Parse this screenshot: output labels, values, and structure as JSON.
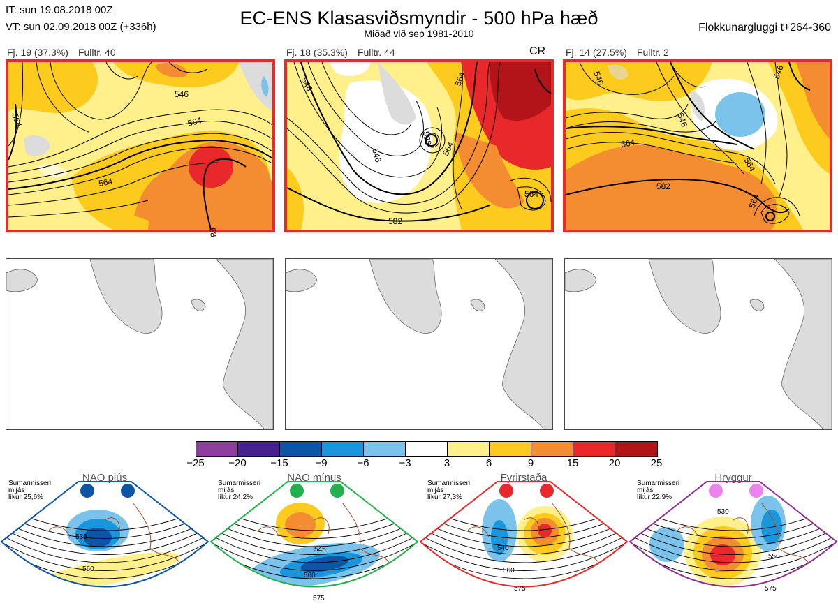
{
  "header": {
    "it": "IT: sun 19.08.2018 00Z",
    "vt": "VT: sun 02.09.2018 00Z  (+336h)",
    "title": "EC-ENS Klasasviðsmyndir - 500 hPa hæð",
    "subtitle": "Miðað við sep 1981-2010",
    "window": "Flokkunargluggi t+264-360"
  },
  "panels": [
    {
      "fj": "Fj. 19 (37.3%)",
      "fulltr": "Fulltr. 40",
      "flag": "",
      "contours": [
        "546",
        "564",
        "564",
        "564",
        "58"
      ]
    },
    {
      "fj": "Fj. 18 (35.3%)",
      "fulltr": "Fulltr. 44",
      "flag": "CR",
      "contours": [
        "546",
        "546",
        "564",
        "564",
        "564",
        "582",
        "528"
      ]
    },
    {
      "fj": "Fj. 14 (27.5%)",
      "fulltr": "Fulltr. 2",
      "flag": "",
      "contours": [
        "546",
        "546",
        "564",
        "564",
        "564",
        "582",
        "546"
      ]
    }
  ],
  "colorbar": {
    "colors": [
      "#8e3f9c",
      "#47228e",
      "#0d55a5",
      "#1a97dc",
      "#7cc3ec",
      "#ffffff",
      "#fff08c",
      "#fccb1d",
      "#f48c31",
      "#e8282a",
      "#b21419"
    ],
    "labels": [
      "−25",
      "−20",
      "−15",
      "−9",
      "−6",
      "−3",
      "3",
      "6",
      "9",
      "15",
      "20",
      "25"
    ]
  },
  "regimes": [
    {
      "name": "NAO plús",
      "season": "Sumarmisseri",
      "mijas": "mijás",
      "likur": "líkur 25,6%",
      "dot": "#0d55a5",
      "border": "#0d55a5",
      "contours": [
        "535",
        "560"
      ]
    },
    {
      "name": "NAO mínus",
      "season": "Sumarmisseri",
      "mijas": "mijás",
      "likur": "líkur 24,2%",
      "dot": "#22b14c",
      "border": "#22b14c",
      "contours": [
        "545",
        "560",
        "575"
      ]
    },
    {
      "name": "Fyrirstaða",
      "season": "Sumarmisseri",
      "mijas": "mijás",
      "likur": "líkur 27,3%",
      "dot": "#e8282a",
      "border": "#e8282a",
      "contours": [
        "540",
        "560",
        "575"
      ]
    },
    {
      "name": "Hryggur",
      "season": "Sumarmisseri",
      "mijas": "mijás",
      "likur": "líkur 22,9%",
      "dot": "#ee82ee",
      "border": "#8e2e8e",
      "contours": [
        "530",
        "550",
        "575"
      ]
    }
  ]
}
